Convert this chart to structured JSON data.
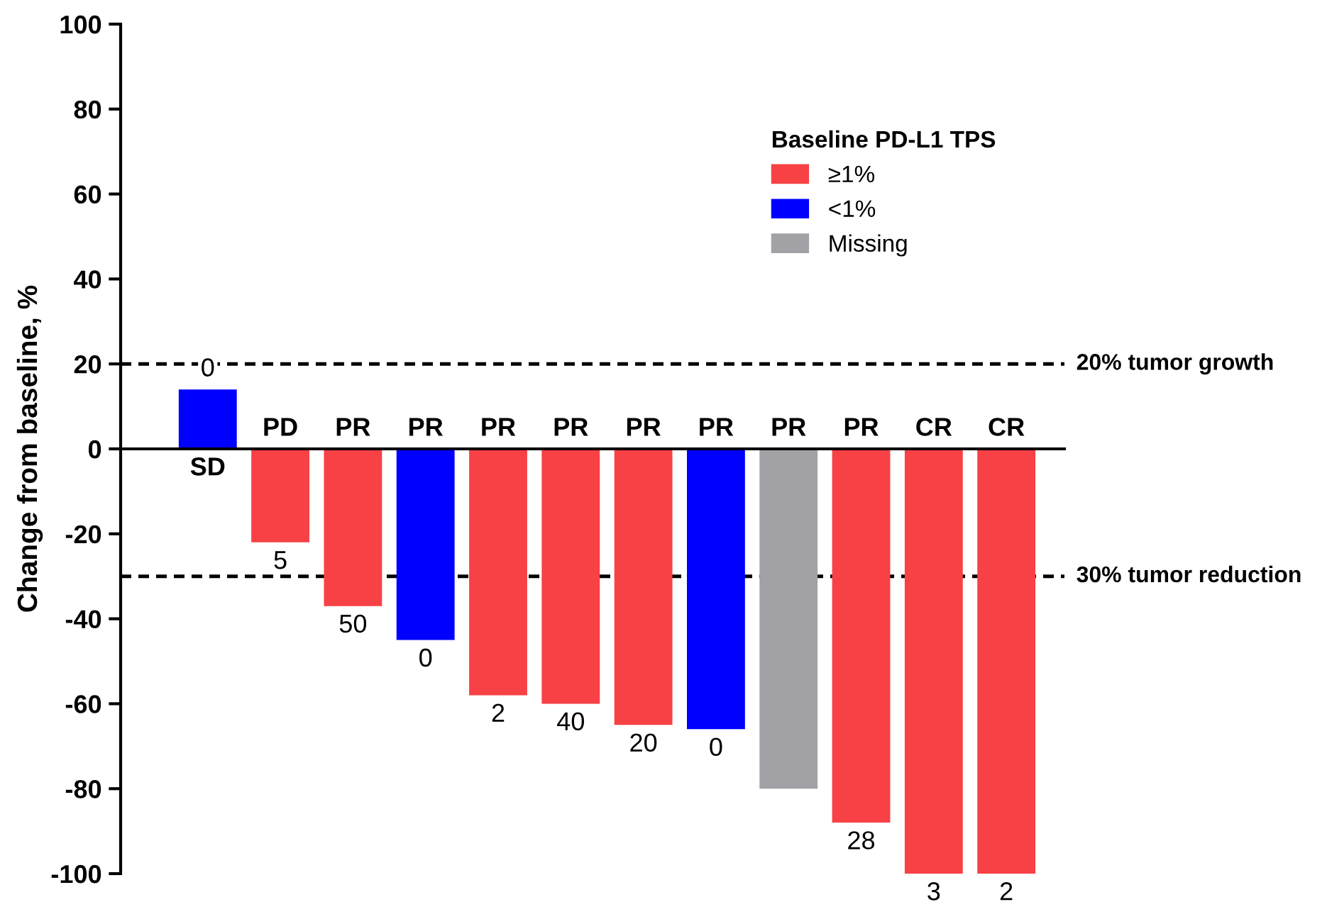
{
  "chart_data": {
    "type": "bar",
    "ylabel": "Change from baseline, %",
    "legend_title": "Baseline PD-L1 TPS",
    "legend": "top right",
    "categories": [
      "SD",
      "PD",
      "PR",
      "PR",
      "PR",
      "PR",
      "PR",
      "PR",
      "PR",
      "PR",
      "CR",
      "CR"
    ],
    "series": [
      {
        "name": "≥1%",
        "color": "#f74145",
        "values": [
          null,
          -22,
          -37,
          null,
          -58,
          -60,
          -65,
          null,
          null,
          -88,
          -100,
          -100
        ]
      },
      {
        "name": "<1%",
        "color": "#0000ff",
        "values": [
          14,
          null,
          null,
          -45,
          null,
          null,
          null,
          -66,
          null,
          null,
          null,
          null
        ]
      },
      {
        "name": "Missing",
        "color": "#a2a1a6",
        "values": [
          null,
          null,
          null,
          null,
          null,
          null,
          null,
          null,
          -80,
          null,
          null,
          null
        ]
      }
    ],
    "annotations": [
      {
        "text": "0",
        "x": "SD",
        "y": 14
      },
      {
        "text": "5",
        "x": "PD",
        "y": -22
      },
      {
        "text": "50",
        "x": "PR",
        "y": -37
      },
      "2",
      "40",
      "20",
      "28",
      "0",
      "0",
      {
        "text": "3",
        "x": "CR",
        "y": -100
      },
      {
        "text": "2",
        "x": "CR",
        "y": -100
      }
    ],
    "ylim": [
      -100,
      100
    ],
    "yticks": [
      -100,
      -80,
      -60,
      -40,
      -20,
      0,
      20,
      40,
      60,
      80,
      100
    ],
    "ref_lines": [
      {
        "axis": "y",
        "value": 20,
        "label": "20% tumor growth",
        "line_style": "dashed",
        "color": "#000000"
      },
      {
        "axis": "y",
        "value": -30,
        "label": "30% tumor reduction",
        "line_style": "dashed",
        "color": "#000000"
      }
    ],
    "grid": false
  }
}
